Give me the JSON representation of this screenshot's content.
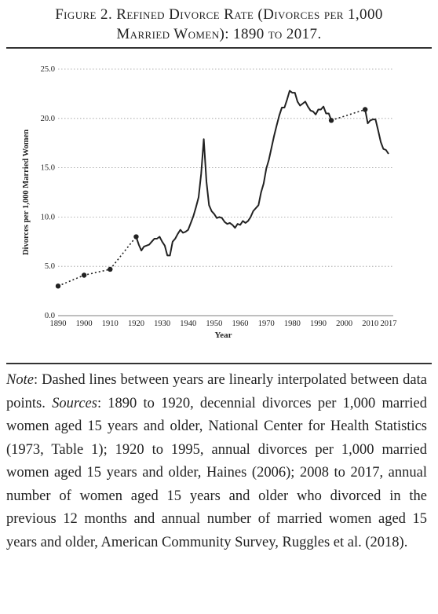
{
  "title_line1": "Figure 2. Refined Divorce Rate (Divorces per 1,000",
  "title_line2": "Married Women): 1890 to 2017.",
  "note": {
    "label": "Note",
    "text1": ": Dashed lines between years are linearly interpolated between data points. ",
    "sources_label": "Sources",
    "text2": ": 1890 to 1920, decennial divorces per 1,000 married women aged 15 years and older, National Center for Health Statistics (1973, Table 1); 1920 to 1995, annual divorces per 1,000 married women aged 15 years and older, Haines (2006); 2008 to 2017, annual number of women aged 15 years and older who divorced in the previous 12 months and annual number of married women aged 15 years and older, American Community Survey, Ruggles et al. (2018)."
  },
  "chart_data": {
    "type": "line",
    "title": "",
    "xlabel": "Year",
    "ylabel": "Divorces per 1,000 Married Women",
    "xlim": [
      1890,
      2017
    ],
    "ylim": [
      0,
      25
    ],
    "grid": "horizontal dotted",
    "x_ticks": [
      "1890",
      "1900",
      "1910",
      "1920",
      "1930",
      "1940",
      "1950",
      "1960",
      "1970",
      "1980",
      "1990",
      "2000",
      "2010",
      "2017"
    ],
    "y_ticks": [
      "0.0",
      "5.0",
      "10.0",
      "15.0",
      "20.0",
      "25.0"
    ],
    "decennial_points": [
      [
        1890,
        3.0
      ],
      [
        1900,
        4.1
      ],
      [
        1910,
        4.7
      ],
      [
        1920,
        8.0
      ]
    ],
    "annual_series": [
      [
        1920,
        8.0
      ],
      [
        1921,
        7.2
      ],
      [
        1922,
        6.6
      ],
      [
        1923,
        7.0
      ],
      [
        1924,
        7.1
      ],
      [
        1925,
        7.2
      ],
      [
        1926,
        7.5
      ],
      [
        1927,
        7.8
      ],
      [
        1928,
        7.8
      ],
      [
        1929,
        8.0
      ],
      [
        1930,
        7.5
      ],
      [
        1931,
        7.1
      ],
      [
        1932,
        6.1
      ],
      [
        1933,
        6.1
      ],
      [
        1934,
        7.5
      ],
      [
        1935,
        7.8
      ],
      [
        1936,
        8.3
      ],
      [
        1937,
        8.7
      ],
      [
        1938,
        8.4
      ],
      [
        1939,
        8.5
      ],
      [
        1940,
        8.7
      ],
      [
        1941,
        9.4
      ],
      [
        1942,
        10.1
      ],
      [
        1943,
        11.0
      ],
      [
        1944,
        12.0
      ],
      [
        1945,
        14.4
      ],
      [
        1946,
        17.9
      ],
      [
        1947,
        13.6
      ],
      [
        1948,
        11.2
      ],
      [
        1949,
        10.6
      ],
      [
        1950,
        10.3
      ],
      [
        1951,
        9.9
      ],
      [
        1952,
        10.0
      ],
      [
        1953,
        9.9
      ],
      [
        1954,
        9.5
      ],
      [
        1955,
        9.3
      ],
      [
        1956,
        9.4
      ],
      [
        1957,
        9.2
      ],
      [
        1958,
        8.9
      ],
      [
        1959,
        9.3
      ],
      [
        1960,
        9.2
      ],
      [
        1961,
        9.6
      ],
      [
        1962,
        9.4
      ],
      [
        1963,
        9.6
      ],
      [
        1964,
        10.0
      ],
      [
        1965,
        10.6
      ],
      [
        1966,
        10.9
      ],
      [
        1967,
        11.2
      ],
      [
        1968,
        12.5
      ],
      [
        1969,
        13.4
      ],
      [
        1970,
        14.9
      ],
      [
        1971,
        15.8
      ],
      [
        1972,
        17.0
      ],
      [
        1973,
        18.2
      ],
      [
        1974,
        19.3
      ],
      [
        1975,
        20.3
      ],
      [
        1976,
        21.1
      ],
      [
        1977,
        21.1
      ],
      [
        1978,
        21.9
      ],
      [
        1979,
        22.8
      ],
      [
        1980,
        22.6
      ],
      [
        1981,
        22.6
      ],
      [
        1982,
        21.7
      ],
      [
        1983,
        21.3
      ],
      [
        1984,
        21.5
      ],
      [
        1985,
        21.7
      ],
      [
        1986,
        21.2
      ],
      [
        1987,
        20.8
      ],
      [
        1988,
        20.7
      ],
      [
        1989,
        20.4
      ],
      [
        1990,
        20.9
      ],
      [
        1991,
        20.9
      ],
      [
        1992,
        21.2
      ],
      [
        1993,
        20.5
      ],
      [
        1994,
        20.5
      ],
      [
        1995,
        19.8
      ]
    ],
    "interp_points": [
      [
        1995,
        19.8
      ],
      [
        2008,
        20.9
      ]
    ],
    "acs_series": [
      [
        2008,
        20.9
      ],
      [
        2009,
        19.5
      ],
      [
        2010,
        19.8
      ],
      [
        2011,
        19.9
      ],
      [
        2012,
        19.9
      ],
      [
        2013,
        18.8
      ],
      [
        2014,
        17.6
      ],
      [
        2015,
        16.9
      ],
      [
        2016,
        16.8
      ],
      [
        2017,
        16.4
      ]
    ]
  }
}
